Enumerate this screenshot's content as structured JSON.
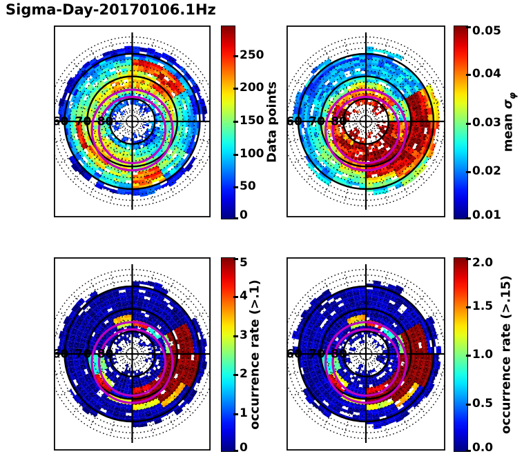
{
  "title": "Sigma-Day-20170106.1Hz",
  "colors": {
    "background": "#ffffff",
    "grid_lines": "#000000",
    "oval_circles": "#c000c0",
    "text": "#000000"
  },
  "grid_overlay": {
    "lat_circle_labels": [
      "60",
      "70",
      "80"
    ],
    "solid_lat_circles": [
      80,
      70,
      60
    ],
    "dotted_lat_circles": [
      87.5,
      85,
      82.5,
      77.5,
      75,
      72.5,
      67.5,
      65,
      62.5,
      57.5,
      55,
      52.5
    ],
    "spoke_interval_deg": 15,
    "oval_circles": [
      {
        "radius_deg": 17.9,
        "offset_deg_toward_bottom": 3.8
      },
      {
        "radius_deg": 14.7,
        "offset_deg_toward_bottom": 3.8
      }
    ]
  },
  "chart_data": {
    "type": "heatmap",
    "projection": "polar-latitude",
    "lat_band_edges": [
      85,
      82.5,
      80,
      77.5,
      75,
      72.5,
      70,
      67.5,
      65,
      62.5,
      60,
      57.5
    ],
    "sector_deg": 30,
    "sector_origin": "12-oclock-clockwise",
    "panels": [
      {
        "position": "top-left",
        "colorbar": {
          "label": "Data points",
          "ticks": [
            "0",
            "50",
            "100",
            "150",
            "200",
            "250"
          ],
          "tick_values": [
            0,
            50,
            100,
            150,
            200,
            250
          ],
          "vmin": 0,
          "vmax": 295
        },
        "grid": [
          [
            null,
            40,
            null,
            50,
            null,
            40,
            null,
            null,
            50,
            null,
            40,
            null
          ],
          [
            60,
            50,
            null,
            70,
            40,
            50,
            60,
            null,
            50,
            40,
            60,
            50
          ],
          [
            100,
            90,
            70,
            60,
            50,
            80,
            110,
            90,
            120,
            100,
            80,
            90
          ],
          [
            170,
            150,
            120,
            100,
            90,
            130,
            150,
            170,
            140,
            160,
            180,
            150
          ],
          [
            200,
            180,
            150,
            130,
            110,
            150,
            170,
            190,
            160,
            150,
            190,
            210
          ],
          [
            200,
            230,
            170,
            140,
            120,
            160,
            180,
            200,
            190,
            160,
            170,
            200
          ],
          [
            180,
            240,
            140,
            120,
            130,
            150,
            170,
            220,
            180,
            150,
            140,
            170
          ],
          [
            230,
            258,
            120,
            110,
            140,
            230,
            160,
            180,
            255,
            140,
            120,
            130
          ],
          [
            255,
            230,
            100,
            90,
            120,
            230,
            140,
            120,
            130,
            110,
            100,
            110
          ],
          [
            70,
            80,
            60,
            70,
            90,
            210,
            100,
            80,
            70,
            60,
            70,
            80
          ],
          [
            30,
            40,
            30,
            null,
            40,
            50,
            40,
            30,
            null,
            30,
            40,
            30
          ]
        ]
      },
      {
        "position": "top-right",
        "colorbar": {
          "label_prefix": "mean ",
          "label_symbol": "σ",
          "label_subscript": "φ",
          "ticks": [
            "0.01",
            "0.02",
            "0.03",
            "0.04",
            "0.05"
          ],
          "tick_values": [
            0.01,
            0.02,
            0.03,
            0.04,
            0.05
          ],
          "vmin": 0.01,
          "vmax": 0.05
        },
        "grid": [
          [
            null,
            0.048,
            null,
            0.05,
            null,
            0.045,
            null,
            0.048,
            null,
            null,
            0.045,
            null
          ],
          [
            0.045,
            0.05,
            null,
            0.048,
            0.05,
            null,
            0.045,
            0.05,
            null,
            0.048,
            null,
            0.045
          ],
          [
            0.04,
            0.045,
            0.035,
            0.05,
            0.048,
            0.045,
            0.05,
            0.04,
            0.045,
            0.05,
            0.038,
            0.042
          ],
          [
            0.036,
            0.04,
            0.03,
            0.045,
            0.05,
            0.048,
            0.045,
            0.05,
            0.042,
            0.045,
            0.04,
            0.038
          ],
          [
            0.033,
            0.028,
            0.025,
            0.04,
            0.05,
            0.05,
            0.048,
            0.045,
            0.04,
            0.035,
            0.03,
            0.035
          ],
          [
            0.025,
            0.022,
            0.03,
            0.045,
            0.05,
            0.048,
            0.04,
            0.035,
            0.03,
            0.028,
            0.024,
            0.026
          ],
          [
            0.022,
            0.023,
            0.05,
            0.05,
            0.048,
            0.045,
            0.038,
            0.03,
            0.026,
            0.024,
            0.022,
            0.023
          ],
          [
            0.022,
            0.024,
            0.05,
            0.05,
            0.048,
            0.045,
            0.032,
            0.028,
            0.024,
            0.022,
            0.021,
            0.022
          ],
          [
            0.021,
            0.023,
            0.048,
            0.05,
            0.045,
            0.035,
            0.028,
            0.025,
            0.022,
            0.021,
            0.02,
            0.021
          ],
          [
            0.02,
            0.022,
            0.04,
            0.045,
            0.04,
            0.03,
            0.025,
            0.022,
            0.021,
            0.02,
            0.019,
            0.02
          ],
          [
            0.022,
            null,
            0.035,
            0.04,
            0.03,
            0.025,
            null,
            0.022,
            null,
            0.02,
            0.022,
            null
          ]
        ]
      },
      {
        "position": "bottom-left",
        "colorbar": {
          "label": "occurrence rate (>.1)",
          "ticks": [
            "0",
            "1",
            "2",
            "3",
            "4",
            "5"
          ],
          "tick_values": [
            0,
            1,
            2,
            3,
            4,
            5
          ],
          "vmin": 0,
          "vmax": 5
        },
        "grid": [
          [
            null,
            0.2,
            null,
            0.2,
            null,
            null,
            0.2,
            null,
            null,
            0.2,
            null,
            0.2
          ],
          [
            0.2,
            null,
            0.2,
            0.2,
            null,
            0.2,
            0.2,
            null,
            0.2,
            null,
            0.2,
            0.2
          ],
          [
            0.2,
            0.2,
            0.2,
            0.3,
            0.2,
            0.2,
            0.2,
            0.2,
            0.2,
            0.2,
            0.2,
            0.2
          ],
          [
            4.2,
            2.0,
            0.2,
            0.3,
            0.2,
            0.2,
            0.2,
            0.2,
            2.5,
            0.2,
            0.2,
            2.8
          ],
          [
            0.2,
            0.2,
            2.5,
            5,
            5,
            4.5,
            0.3,
            3.0,
            2.0,
            0.2,
            0.2,
            3.5
          ],
          [
            0.2,
            0.2,
            5,
            5,
            5,
            5,
            0.5,
            4.5,
            2.0,
            0.2,
            0.2,
            0.2
          ],
          [
            0.2,
            0.2,
            5,
            5,
            5,
            5,
            3.0,
            0.3,
            0.2,
            0.2,
            0.2,
            0.2
          ],
          [
            0.2,
            0.2,
            5,
            5,
            5,
            3.0,
            0.3,
            0.2,
            0.2,
            0.2,
            0.2,
            0.2
          ],
          [
            0.2,
            0.2,
            5,
            5,
            3.5,
            0.3,
            0.2,
            0.2,
            0.2,
            0.2,
            0.2,
            0.2
          ],
          [
            0.2,
            0.2,
            0.3,
            5,
            0.3,
            0.2,
            0.2,
            0.2,
            0.2,
            0.2,
            0.2,
            0.2
          ],
          [
            0.2,
            null,
            0.2,
            0.2,
            0.2,
            0.2,
            null,
            0.2,
            null,
            0.2,
            0.2,
            null
          ]
        ]
      },
      {
        "position": "bottom-right",
        "colorbar": {
          "label": "occurrence rate (>.15)",
          "ticks": [
            "0.0",
            "0.5",
            "1.0",
            "1.5",
            "2.0"
          ],
          "tick_values": [
            0,
            0.5,
            1.0,
            1.5,
            2.0
          ],
          "vmin": 0,
          "vmax": 2
        },
        "grid": [
          [
            null,
            0.1,
            null,
            0.1,
            null,
            null,
            0.1,
            null,
            null,
            0.1,
            null,
            0.1
          ],
          [
            0.1,
            null,
            0.1,
            0.1,
            null,
            0.1,
            0.1,
            null,
            0.1,
            null,
            0.1,
            0.1
          ],
          [
            0.1,
            0.1,
            0.1,
            0.15,
            0.1,
            0.1,
            0.1,
            0.1,
            0.1,
            0.1,
            0.1,
            0.1
          ],
          [
            1.7,
            0.8,
            0.1,
            0.15,
            0.1,
            0.1,
            0.1,
            0.1,
            1.0,
            0.1,
            0.1,
            1.1
          ],
          [
            0.1,
            0.1,
            1.0,
            2,
            2,
            1.8,
            0.15,
            1.2,
            0.8,
            0.1,
            0.1,
            1.4
          ],
          [
            0.1,
            0.1,
            2,
            2,
            2,
            2,
            0.2,
            1.8,
            0.8,
            0.1,
            0.1,
            0.1
          ],
          [
            0.1,
            0.1,
            2,
            2,
            2,
            2,
            1.2,
            0.15,
            0.1,
            0.1,
            0.1,
            0.1
          ],
          [
            0.1,
            0.1,
            2,
            2,
            2,
            1.2,
            0.15,
            0.1,
            0.1,
            0.1,
            0.1,
            0.1
          ],
          [
            0.1,
            0.1,
            2,
            2,
            1.4,
            0.15,
            0.1,
            0.1,
            0.1,
            0.1,
            0.1,
            0.1
          ],
          [
            0.1,
            0.1,
            0.15,
            2,
            0.15,
            0.1,
            0.1,
            0.1,
            0.1,
            0.1,
            0.1,
            0.1
          ],
          [
            0.1,
            null,
            0.1,
            0.1,
            0.1,
            0.1,
            null,
            0.1,
            null,
            0.1,
            0.1,
            null
          ]
        ]
      }
    ]
  }
}
